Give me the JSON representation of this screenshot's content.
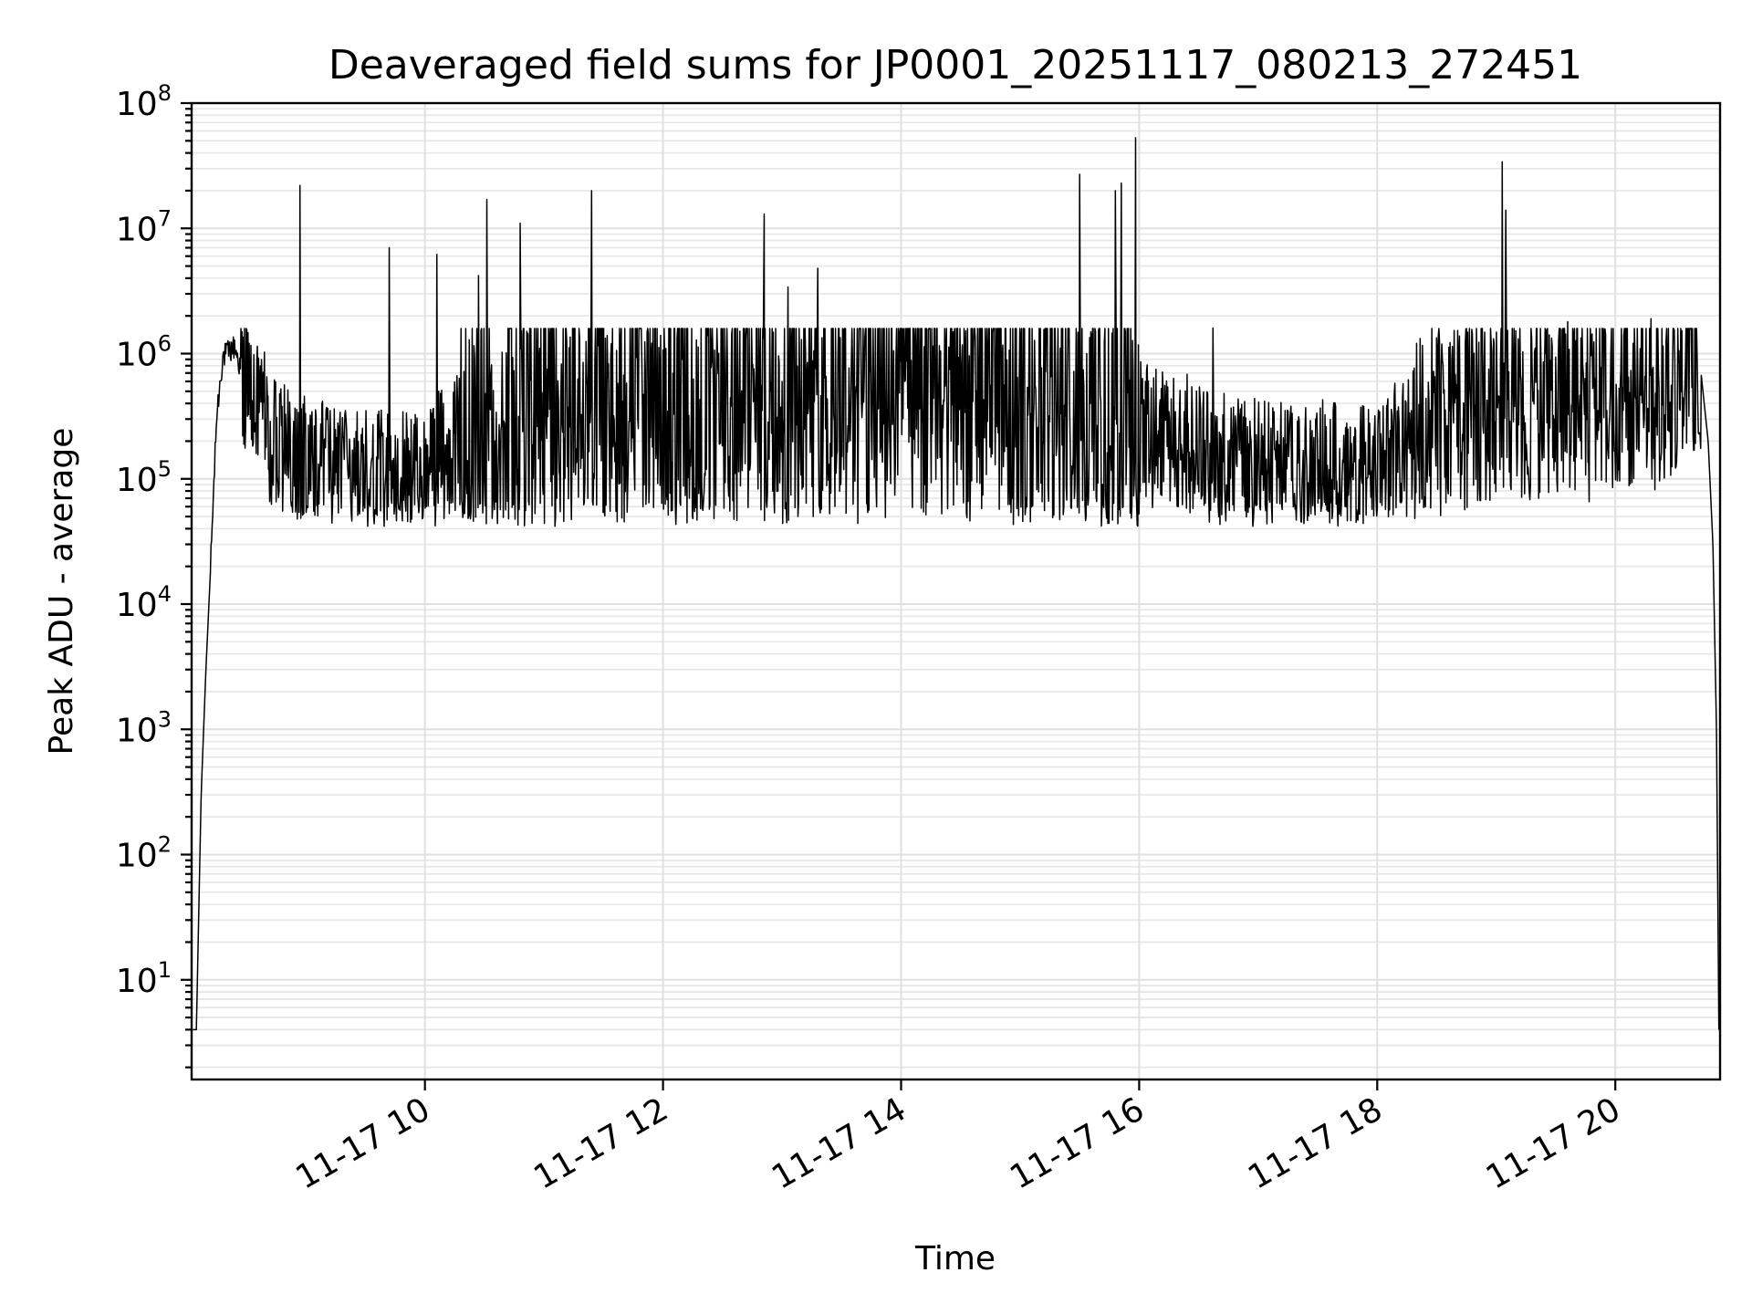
{
  "chart_data": {
    "type": "line",
    "title": "Deaveraged field sums for JP0001_20251117_080213_272451",
    "xlabel": "Time",
    "ylabel": "Peak ADU - average",
    "yscale": "log",
    "ylim": [
      1.6,
      100000000
    ],
    "xlim_hours": [
      8.04,
      20.88
    ],
    "grid": true,
    "x_tick_hours": [
      10,
      12,
      14,
      16,
      18,
      20
    ],
    "x_tick_labels": [
      "11-17 10",
      "11-17 12",
      "11-17 14",
      "11-17 16",
      "11-17 18",
      "11-17 20"
    ],
    "y_ticks": [
      {
        "value": 10,
        "base": "10",
        "exp": "1"
      },
      {
        "value": 100,
        "base": "10",
        "exp": "2"
      },
      {
        "value": 1000,
        "base": "10",
        "exp": "3"
      },
      {
        "value": 10000,
        "base": "10",
        "exp": "4"
      },
      {
        "value": 100000,
        "base": "10",
        "exp": "5"
      },
      {
        "value": 1000000,
        "base": "10",
        "exp": "6"
      },
      {
        "value": 10000000,
        "base": "10",
        "exp": "7"
      },
      {
        "value": 100000000,
        "base": "10",
        "exp": "8"
      }
    ],
    "series": [
      {
        "name": "Peak ADU - average",
        "color": "#000000",
        "envelope": [
          {
            "t": 8.05,
            "v": 4
          },
          {
            "t": 8.08,
            "v": 4
          },
          {
            "t": 8.12,
            "v": 300
          },
          {
            "t": 8.16,
            "v": 3000
          },
          {
            "t": 8.2,
            "v": 20000
          },
          {
            "t": 8.25,
            "v": 300000
          },
          {
            "t": 8.3,
            "v": 900000
          },
          {
            "t": 8.4,
            "v": 1100000
          },
          {
            "t": 8.5,
            "v": 500000
          },
          {
            "t": 8.8,
            "v": 150000
          },
          {
            "t": 9.0,
            "v": 150000
          },
          {
            "t": 9.3,
            "v": 100000
          },
          {
            "t": 9.8,
            "v": 100000
          },
          {
            "t": 10.4,
            "v": 200000
          },
          {
            "t": 11.0,
            "v": 350000
          },
          {
            "t": 12.0,
            "v": 350000
          },
          {
            "t": 13.0,
            "v": 400000
          },
          {
            "t": 14.0,
            "v": 600000
          },
          {
            "t": 15.0,
            "v": 400000
          },
          {
            "t": 16.0,
            "v": 250000
          },
          {
            "t": 16.8,
            "v": 130000
          },
          {
            "t": 17.5,
            "v": 110000
          },
          {
            "t": 18.0,
            "v": 110000
          },
          {
            "t": 18.5,
            "v": 280000
          },
          {
            "t": 19.0,
            "v": 350000
          },
          {
            "t": 20.0,
            "v": 450000
          },
          {
            "t": 20.5,
            "v": 550000
          },
          {
            "t": 20.62,
            "v": 1100000
          },
          {
            "t": 20.72,
            "v": 700000
          },
          {
            "t": 20.78,
            "v": 200000
          },
          {
            "t": 20.82,
            "v": 30000
          },
          {
            "t": 20.85,
            "v": 1000
          },
          {
            "t": 20.87,
            "v": 4
          }
        ],
        "spikes": [
          {
            "t": 8.95,
            "v": 22000000
          },
          {
            "t": 9.7,
            "v": 7000000
          },
          {
            "t": 10.1,
            "v": 6200000
          },
          {
            "t": 10.45,
            "v": 4200000
          },
          {
            "t": 10.52,
            "v": 17000000
          },
          {
            "t": 10.8,
            "v": 11000000
          },
          {
            "t": 11.4,
            "v": 20000000
          },
          {
            "t": 12.85,
            "v": 13000000
          },
          {
            "t": 13.05,
            "v": 3400000
          },
          {
            "t": 13.3,
            "v": 4800000
          },
          {
            "t": 15.5,
            "v": 27000000
          },
          {
            "t": 15.8,
            "v": 20000000
          },
          {
            "t": 15.85,
            "v": 23000000
          },
          {
            "t": 15.97,
            "v": 53000000
          },
          {
            "t": 16.62,
            "v": 1600000
          },
          {
            "t": 19.05,
            "v": 34000000
          },
          {
            "t": 19.08,
            "v": 14000000
          },
          {
            "t": 19.6,
            "v": 1800000
          },
          {
            "t": 20.3,
            "v": 1900000
          }
        ]
      }
    ]
  }
}
